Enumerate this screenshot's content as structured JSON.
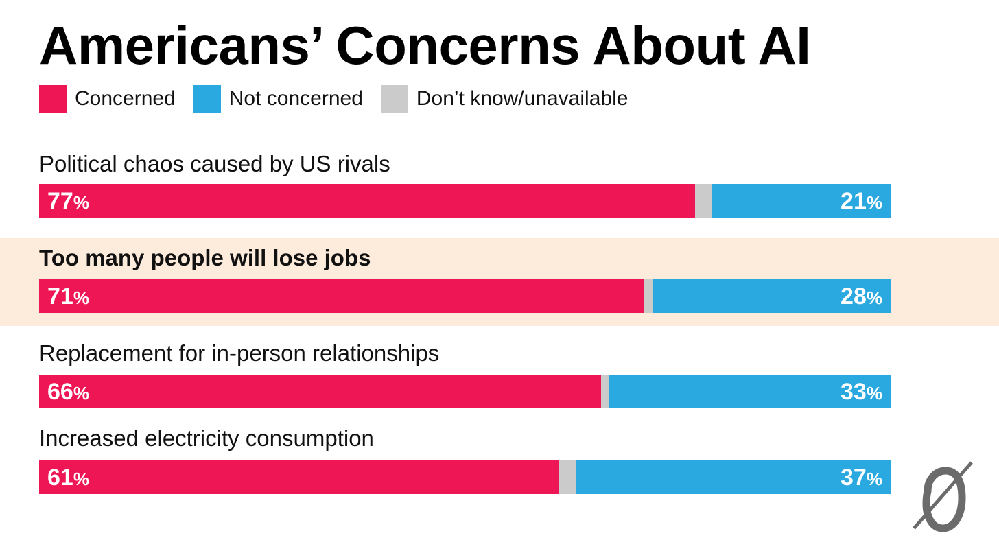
{
  "title": "Americans’ Concerns About AI",
  "legend": [
    {
      "label": "Concerned",
      "color": "#ee1655"
    },
    {
      "label": "Not concerned",
      "color": "#2aa8e0"
    },
    {
      "label": "Don’t know/unavailable",
      "color": "#cbcbcb"
    }
  ],
  "chart_data": {
    "type": "bar",
    "orientation": "horizontal",
    "stacked": true,
    "title": "Americans’ Concerns About AI",
    "categories": [
      "Political chaos caused by US rivals",
      "Too many people will lose jobs",
      "Replacement for in-person relationships",
      "Increased electricity consumption"
    ],
    "series": [
      {
        "name": "Concerned",
        "values": [
          77,
          71,
          66,
          61
        ],
        "color": "#ee1655"
      },
      {
        "name": "Don’t know/unavailable",
        "values": [
          2,
          1,
          1,
          2
        ],
        "color": "#cbcbcb"
      },
      {
        "name": "Not concerned",
        "values": [
          21,
          28,
          33,
          37
        ],
        "color": "#2aa8e0"
      }
    ],
    "data_labels": {
      "concerned": [
        "77%",
        "71%",
        "66%",
        "61%"
      ],
      "not_concerned": [
        "21%",
        "28%",
        "33%",
        "37%"
      ]
    },
    "highlighted_category": "Too many people will lose jobs",
    "xlim": [
      0,
      100
    ],
    "legend_position": "top-left",
    "grid": false
  }
}
